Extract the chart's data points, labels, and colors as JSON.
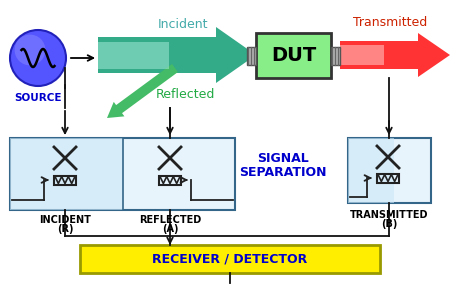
{
  "bg_color": "#ffffff",
  "source_circle_color": "#4444ee",
  "source_label": "SOURCE",
  "source_label_color": "#0000cc",
  "incident_label": "Incident",
  "incident_label_color": "#44aaaa",
  "reflected_label": "Reflected",
  "reflected_label_color": "#22aa44",
  "transmitted_label": "Transmitted",
  "transmitted_label_color": "#cc2200",
  "incident_arrow_color1": "#aadddd",
  "incident_arrow_color2": "#228866",
  "transmitted_arrow_color1": "#ffaaaa",
  "transmitted_arrow_color2": "#cc0000",
  "reflected_arrow_color": "#33bb55",
  "dut_label": "DUT",
  "dut_bg": "#88ee88",
  "dut_edge": "#333333",
  "connector_color": "#888888",
  "signal_sep_label1": "SIGNAL",
  "signal_sep_label2": "SEPARATION",
  "signal_sep_color": "#0000cc",
  "incident_box_label1": "INCIDENT",
  "incident_box_label2": "(R)",
  "reflected_box_label1": "REFLECTED",
  "reflected_box_label2": "(A)",
  "transmitted_box_label1": "TRANSMITTED",
  "transmitted_box_label2": "(B)",
  "box_bg": "#cce8f8",
  "box_bg2": "#e8f4fc",
  "box_edge": "#336688",
  "receiver_label": "RECEIVER / DETECTOR",
  "receiver_color": "#0000cc",
  "receiver_bg": "#ffee00",
  "receiver_edge": "#999900",
  "line_color": "#111111",
  "symbol_color": "#222222"
}
